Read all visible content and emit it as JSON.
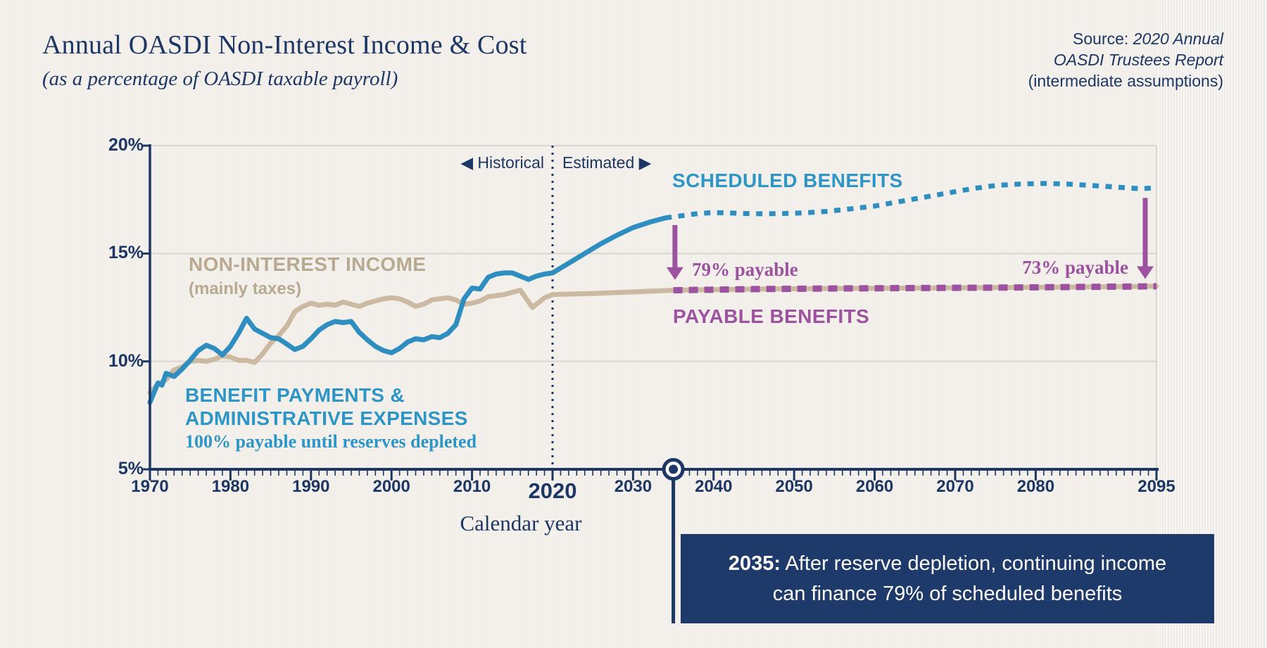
{
  "header": {
    "title": "Annual OASDI Non-Interest Income & Cost",
    "subtitle": "(as a percentage of OASDI taxable payroll)",
    "source_prefix": "Source: ",
    "source_italic_line1": "2020 Annual",
    "source_italic_line2": "OASDI Trustees Report",
    "source_line3": "(intermediate assumptions)"
  },
  "colors": {
    "background": "#f2eee9",
    "navy": "#1d3765",
    "blue_line": "#2d8ebf",
    "blue_label": "#2d96c6",
    "tan_line": "#cbbaa1",
    "tan_label": "#b7aa91",
    "purple": "#9d52a0",
    "grid": "#d9d5cf",
    "callout_bg": "#1e3a6a",
    "callout_text": "#ffffff"
  },
  "chart_data": {
    "type": "line",
    "xlabel": "Calendar year",
    "ylabel": "",
    "x_range": [
      1970,
      2095
    ],
    "y_range": [
      5,
      20
    ],
    "grid_values": [
      20,
      15,
      10
    ],
    "y_ticks": [
      {
        "value": 20,
        "label": "20%"
      },
      {
        "value": 15,
        "label": "15%"
      },
      {
        "value": 10,
        "label": "10%"
      },
      {
        "value": 5,
        "label": "5%"
      }
    ],
    "x_major_ticks": [
      {
        "value": 1970,
        "label": "1970",
        "emphasis": false
      },
      {
        "value": 1980,
        "label": "1980",
        "emphasis": false
      },
      {
        "value": 1990,
        "label": "1990",
        "emphasis": false
      },
      {
        "value": 2000,
        "label": "2000",
        "emphasis": false
      },
      {
        "value": 2010,
        "label": "2010",
        "emphasis": false
      },
      {
        "value": 2020,
        "label": "2020",
        "emphasis": true
      },
      {
        "value": 2030,
        "label": "2030",
        "emphasis": false
      },
      {
        "value": 2040,
        "label": "2040",
        "emphasis": false
      },
      {
        "value": 2050,
        "label": "2050",
        "emphasis": false
      },
      {
        "value": 2060,
        "label": "2060",
        "emphasis": false
      },
      {
        "value": 2070,
        "label": "2070",
        "emphasis": false
      },
      {
        "value": 2080,
        "label": "2080",
        "emphasis": false
      },
      {
        "value": 2095,
        "label": "2095",
        "emphasis": false
      }
    ],
    "minor_tick_step_years": 1,
    "divider": {
      "year": 2020,
      "left_label": "◀ Historical",
      "right_label": "Estimated ▶"
    },
    "depletion_marker": {
      "year": 2035
    },
    "arrows": [
      {
        "year": 2035.2,
        "v_from": 16.32,
        "v_to": 13.78,
        "label": "79% payable"
      },
      {
        "year": 2093.6,
        "v_from": 17.58,
        "v_to": 13.82,
        "label": "73% payable"
      }
    ],
    "series": [
      {
        "name": "Non-interest income (mainly taxes)",
        "style": "solid",
        "color_key": "tan_line",
        "points": [
          [
            1970,
            8.55
          ],
          [
            1971,
            8.95
          ],
          [
            1972,
            9.15
          ],
          [
            1973,
            9.6
          ],
          [
            1974,
            9.75
          ],
          [
            1975,
            10.0
          ],
          [
            1976,
            10.05
          ],
          [
            1977,
            10.0
          ],
          [
            1978,
            10.1
          ],
          [
            1979,
            10.25
          ],
          [
            1980,
            10.2
          ],
          [
            1981,
            10.05
          ],
          [
            1982,
            10.05
          ],
          [
            1983,
            9.95
          ],
          [
            1984,
            10.35
          ],
          [
            1985,
            10.85
          ],
          [
            1986,
            11.2
          ],
          [
            1987,
            11.65
          ],
          [
            1988,
            12.3
          ],
          [
            1989,
            12.55
          ],
          [
            1990,
            12.7
          ],
          [
            1991,
            12.6
          ],
          [
            1992,
            12.65
          ],
          [
            1993,
            12.6
          ],
          [
            1994,
            12.75
          ],
          [
            1995,
            12.65
          ],
          [
            1996,
            12.55
          ],
          [
            1997,
            12.7
          ],
          [
            1998,
            12.8
          ],
          [
            1999,
            12.9
          ],
          [
            2000,
            12.95
          ],
          [
            2001,
            12.9
          ],
          [
            2002,
            12.75
          ],
          [
            2003,
            12.55
          ],
          [
            2004,
            12.65
          ],
          [
            2005,
            12.85
          ],
          [
            2006,
            12.9
          ],
          [
            2007,
            12.95
          ],
          [
            2008,
            12.85
          ],
          [
            2009,
            12.65
          ],
          [
            2010,
            12.7
          ],
          [
            2011,
            12.8
          ],
          [
            2012,
            13.0
          ],
          [
            2013,
            13.05
          ],
          [
            2014,
            13.1
          ],
          [
            2015,
            13.2
          ],
          [
            2016,
            13.3
          ],
          [
            2017.5,
            12.5
          ],
          [
            2019,
            12.95
          ],
          [
            2020,
            13.1
          ],
          [
            2025,
            13.15
          ],
          [
            2030,
            13.22
          ],
          [
            2035,
            13.3
          ],
          [
            2045,
            13.35
          ],
          [
            2055,
            13.38
          ],
          [
            2065,
            13.4
          ],
          [
            2075,
            13.42
          ],
          [
            2085,
            13.45
          ],
          [
            2095,
            13.48
          ]
        ]
      },
      {
        "name": "Benefit payments & administrative expenses (100% payable until reserves depleted)",
        "style": "solid",
        "color_key": "blue_line",
        "points": [
          [
            1970,
            8.1
          ],
          [
            1971,
            9.0
          ],
          [
            1971.5,
            8.9
          ],
          [
            1972,
            9.45
          ],
          [
            1973,
            9.3
          ],
          [
            1974,
            9.65
          ],
          [
            1975,
            10.05
          ],
          [
            1976,
            10.5
          ],
          [
            1977,
            10.75
          ],
          [
            1978,
            10.6
          ],
          [
            1979,
            10.3
          ],
          [
            1980,
            10.7
          ],
          [
            1981,
            11.3
          ],
          [
            1982,
            12.0
          ],
          [
            1983,
            11.5
          ],
          [
            1984,
            11.3
          ],
          [
            1985,
            11.1
          ],
          [
            1986,
            11.05
          ],
          [
            1987,
            10.8
          ],
          [
            1988,
            10.55
          ],
          [
            1989,
            10.7
          ],
          [
            1990,
            11.05
          ],
          [
            1991,
            11.45
          ],
          [
            1992,
            11.7
          ],
          [
            1993,
            11.85
          ],
          [
            1994,
            11.8
          ],
          [
            1995,
            11.85
          ],
          [
            1996,
            11.35
          ],
          [
            1997,
            11.0
          ],
          [
            1998,
            10.7
          ],
          [
            1999,
            10.5
          ],
          [
            2000,
            10.4
          ],
          [
            2001,
            10.6
          ],
          [
            2002,
            10.9
          ],
          [
            2003,
            11.05
          ],
          [
            2004,
            11.0
          ],
          [
            2005,
            11.15
          ],
          [
            2006,
            11.1
          ],
          [
            2007,
            11.3
          ],
          [
            2008,
            11.7
          ],
          [
            2009,
            12.9
          ],
          [
            2010,
            13.4
          ],
          [
            2011,
            13.35
          ],
          [
            2012,
            13.9
          ],
          [
            2013,
            14.05
          ],
          [
            2014,
            14.1
          ],
          [
            2015,
            14.1
          ],
          [
            2016,
            13.95
          ],
          [
            2017,
            13.8
          ],
          [
            2018,
            13.95
          ],
          [
            2019,
            14.05
          ],
          [
            2020,
            14.1
          ],
          [
            2022,
            14.55
          ],
          [
            2024,
            15.0
          ],
          [
            2026,
            15.45
          ],
          [
            2028,
            15.85
          ],
          [
            2030,
            16.2
          ],
          [
            2032,
            16.45
          ],
          [
            2034,
            16.65
          ]
        ]
      },
      {
        "name": "Scheduled benefits (estimated)",
        "style": "dotted",
        "color_key": "blue_line",
        "points": [
          [
            2034,
            16.65
          ],
          [
            2036,
            16.75
          ],
          [
            2038,
            16.85
          ],
          [
            2040,
            16.9
          ],
          [
            2042,
            16.88
          ],
          [
            2045,
            16.84
          ],
          [
            2048,
            16.85
          ],
          [
            2051,
            16.88
          ],
          [
            2054,
            16.95
          ],
          [
            2057,
            17.07
          ],
          [
            2060,
            17.2
          ],
          [
            2063,
            17.4
          ],
          [
            2066,
            17.6
          ],
          [
            2069,
            17.8
          ],
          [
            2072,
            18.0
          ],
          [
            2075,
            18.15
          ],
          [
            2078,
            18.22
          ],
          [
            2081,
            18.25
          ],
          [
            2084,
            18.22
          ],
          [
            2087,
            18.15
          ],
          [
            2090,
            18.08
          ],
          [
            2093,
            18.0
          ],
          [
            2095,
            18.05
          ]
        ]
      },
      {
        "name": "Payable benefits (estimated)",
        "style": "dashed",
        "color_key": "purple",
        "points": [
          [
            2035,
            13.3
          ],
          [
            2045,
            13.35
          ],
          [
            2055,
            13.38
          ],
          [
            2065,
            13.4
          ],
          [
            2075,
            13.42
          ],
          [
            2085,
            13.45
          ],
          [
            2095,
            13.48
          ]
        ]
      }
    ],
    "annotations": {
      "scheduled_label": "SCHEDULED BENEFITS",
      "payable_label": "PAYABLE BENEFITS",
      "income_label": "NON-INTEREST INCOME",
      "income_sublabel": "(mainly taxes)",
      "cost_label_line1": "BENEFIT PAYMENTS &",
      "cost_label_line2": "ADMINISTRATIVE EXPENSES",
      "cost_sublabel": "100% payable until reserves depleted",
      "payable_79": "79% payable",
      "payable_73": "73% payable",
      "callout": {
        "year_label": "2035:",
        "line1": " After reserve depletion, continuing income",
        "line2": "can finance 79% of scheduled benefits"
      }
    }
  }
}
